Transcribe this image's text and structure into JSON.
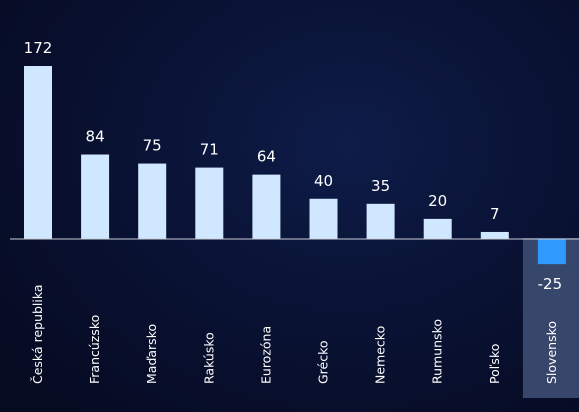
{
  "chart_data": {
    "type": "bar",
    "categories": [
      "Česká republika",
      "Francúzsko",
      "Maďarsko",
      "Rakúsko",
      "Eurozóna",
      "Grécko",
      "Nemecko",
      "Rumunsko",
      "Poľsko",
      "Slovensko"
    ],
    "values": [
      172,
      84,
      75,
      71,
      64,
      40,
      35,
      20,
      7,
      -25
    ],
    "title": "",
    "xlabel": "",
    "ylabel": "",
    "ylim": [
      -25,
      172
    ],
    "grid": false,
    "legend": "none",
    "highlight_index": 9,
    "colors": {
      "bar": "#cfe7ff",
      "highlight_bar": "#2f9bff",
      "highlight_panel": "#37476b",
      "axis": "#c8ccd6",
      "label": "#ffffff"
    }
  }
}
